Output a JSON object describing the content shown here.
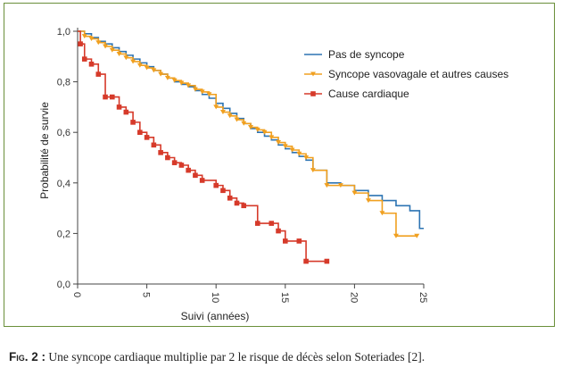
{
  "caption": {
    "label": "Fig. 2 :",
    "text": "Une syncope cardiaque multiplie par 2 le risque de décès selon Soteriades [2]."
  },
  "chart_data": {
    "type": "line",
    "chart_style": "kaplan-meier step",
    "xlabel": "Suivi (années)",
    "ylabel": "Probabilité de survie",
    "xlim": [
      0,
      25
    ],
    "ylim": [
      0,
      1.0
    ],
    "x_ticks": [
      "0",
      "5",
      "10",
      "15",
      "20",
      "25"
    ],
    "x_tick_values": [
      0,
      5,
      10,
      15,
      20,
      25
    ],
    "y_ticks": [
      "0,0",
      "0,2",
      "0,4",
      "0,6",
      "0,8",
      "1,0"
    ],
    "y_tick_values": [
      0,
      0.2,
      0.4,
      0.6,
      0.8,
      1.0
    ],
    "grid": false,
    "legend_position": "top-right",
    "series": [
      {
        "name": "Pas de syncope",
        "color": "#2d74b3",
        "marker": "none",
        "points": [
          [
            0,
            1.0
          ],
          [
            0.5,
            0.99
          ],
          [
            1,
            0.975
          ],
          [
            1.5,
            0.96
          ],
          [
            2,
            0.95
          ],
          [
            2.5,
            0.935
          ],
          [
            3,
            0.92
          ],
          [
            3.5,
            0.905
          ],
          [
            4,
            0.89
          ],
          [
            4.5,
            0.875
          ],
          [
            5,
            0.86
          ],
          [
            5.5,
            0.845
          ],
          [
            6,
            0.83
          ],
          [
            6.5,
            0.815
          ],
          [
            7,
            0.8
          ],
          [
            7.5,
            0.79
          ],
          [
            8,
            0.78
          ],
          [
            8.5,
            0.765
          ],
          [
            9,
            0.75
          ],
          [
            9.5,
            0.735
          ],
          [
            10,
            0.715
          ],
          [
            10.5,
            0.695
          ],
          [
            11,
            0.675
          ],
          [
            11.5,
            0.655
          ],
          [
            12,
            0.635
          ],
          [
            12.5,
            0.615
          ],
          [
            13,
            0.6
          ],
          [
            13.5,
            0.585
          ],
          [
            14,
            0.57
          ],
          [
            14.5,
            0.55
          ],
          [
            15,
            0.535
          ],
          [
            15.5,
            0.52
          ],
          [
            16,
            0.505
          ],
          [
            16.5,
            0.49
          ],
          [
            17,
            0.45
          ],
          [
            18,
            0.4
          ],
          [
            19,
            0.39
          ],
          [
            20,
            0.37
          ],
          [
            21,
            0.35
          ],
          [
            22,
            0.33
          ],
          [
            23,
            0.31
          ],
          [
            24,
            0.29
          ],
          [
            24.7,
            0.22
          ],
          [
            25,
            0.22
          ]
        ]
      },
      {
        "name": "Syncope vasovagale et autres causes",
        "color": "#f0a020",
        "marker": "triangle",
        "points": [
          [
            0,
            1.0
          ],
          [
            0.5,
            0.98
          ],
          [
            1,
            0.97
          ],
          [
            1.5,
            0.955
          ],
          [
            2,
            0.94
          ],
          [
            2.5,
            0.925
          ],
          [
            3,
            0.91
          ],
          [
            3.5,
            0.895
          ],
          [
            4,
            0.88
          ],
          [
            4.5,
            0.865
          ],
          [
            5,
            0.855
          ],
          [
            5.5,
            0.845
          ],
          [
            6,
            0.83
          ],
          [
            6.5,
            0.815
          ],
          [
            7,
            0.805
          ],
          [
            7.5,
            0.795
          ],
          [
            8,
            0.785
          ],
          [
            8.5,
            0.77
          ],
          [
            9,
            0.76
          ],
          [
            9.5,
            0.75
          ],
          [
            10,
            0.7
          ],
          [
            10.5,
            0.68
          ],
          [
            11,
            0.665
          ],
          [
            11.5,
            0.65
          ],
          [
            12,
            0.635
          ],
          [
            12.5,
            0.62
          ],
          [
            13,
            0.61
          ],
          [
            13.5,
            0.6
          ],
          [
            14,
            0.58
          ],
          [
            14.5,
            0.56
          ],
          [
            15,
            0.545
          ],
          [
            15.5,
            0.53
          ],
          [
            16,
            0.515
          ],
          [
            16.5,
            0.5
          ],
          [
            17,
            0.45
          ],
          [
            18,
            0.39
          ],
          [
            19,
            0.39
          ],
          [
            20,
            0.36
          ],
          [
            21,
            0.33
          ],
          [
            22,
            0.28
          ],
          [
            23,
            0.19
          ],
          [
            24.5,
            0.19
          ]
        ]
      },
      {
        "name": "Cause cardiaque",
        "color": "#d63a2a",
        "marker": "square",
        "points": [
          [
            0,
            1.0
          ],
          [
            0.2,
            0.95
          ],
          [
            0.5,
            0.89
          ],
          [
            1,
            0.87
          ],
          [
            1.5,
            0.83
          ],
          [
            2,
            0.74
          ],
          [
            2.5,
            0.74
          ],
          [
            3,
            0.7
          ],
          [
            3.5,
            0.68
          ],
          [
            4,
            0.64
          ],
          [
            4.5,
            0.6
          ],
          [
            5,
            0.58
          ],
          [
            5.5,
            0.55
          ],
          [
            6,
            0.52
          ],
          [
            6.5,
            0.5
          ],
          [
            7,
            0.48
          ],
          [
            7.5,
            0.47
          ],
          [
            8,
            0.45
          ],
          [
            8.5,
            0.43
          ],
          [
            9,
            0.41
          ],
          [
            10,
            0.39
          ],
          [
            10.5,
            0.37
          ],
          [
            11,
            0.34
          ],
          [
            11.5,
            0.32
          ],
          [
            12,
            0.31
          ],
          [
            13,
            0.24
          ],
          [
            14,
            0.24
          ],
          [
            14.5,
            0.21
          ],
          [
            15,
            0.17
          ],
          [
            16,
            0.17
          ],
          [
            16.5,
            0.09
          ],
          [
            18,
            0.09
          ]
        ]
      }
    ]
  }
}
